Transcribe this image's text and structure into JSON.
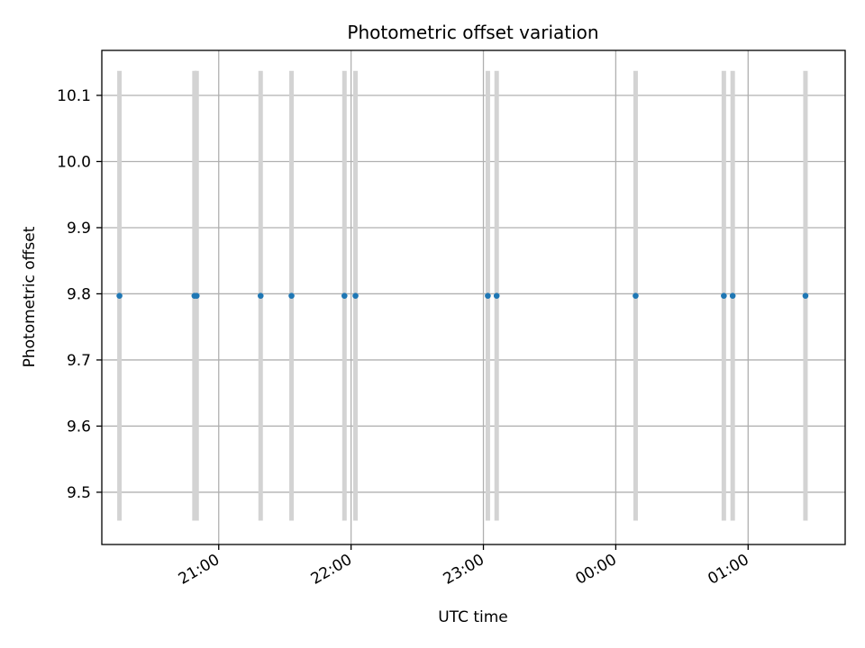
{
  "chart_data": {
    "type": "scatter",
    "title": "Photometric offset variation",
    "xlabel": "UTC time",
    "ylabel": "Photometric offset",
    "x_ticks": [
      "21:00",
      "22:00",
      "23:00",
      "00:00",
      "01:00"
    ],
    "y_ticks": [
      "9.5",
      "9.6",
      "9.7",
      "9.8",
      "9.9",
      "10.0",
      "10.1"
    ],
    "xlim": [
      "20:07",
      "01:44"
    ],
    "ylim": [
      9.421,
      10.168
    ],
    "grid": true,
    "error_bar_range": [
      9.457,
      10.137
    ],
    "series": [
      {
        "x": [
          "20:15",
          "20:49",
          "20:50",
          "21:19",
          "21:33",
          "21:57",
          "22:02",
          "23:02",
          "23:06",
          "00:09",
          "00:49",
          "00:53",
          "01:26"
        ],
        "y": [
          9.797,
          9.797,
          9.797,
          9.797,
          9.797,
          9.797,
          9.797,
          9.797,
          9.797,
          9.797,
          9.797,
          9.797,
          9.797
        ]
      }
    ],
    "colors": {
      "points": "#1f77b4",
      "error_bars": "#d3d3d3",
      "grid": "#b0b0b0"
    }
  }
}
